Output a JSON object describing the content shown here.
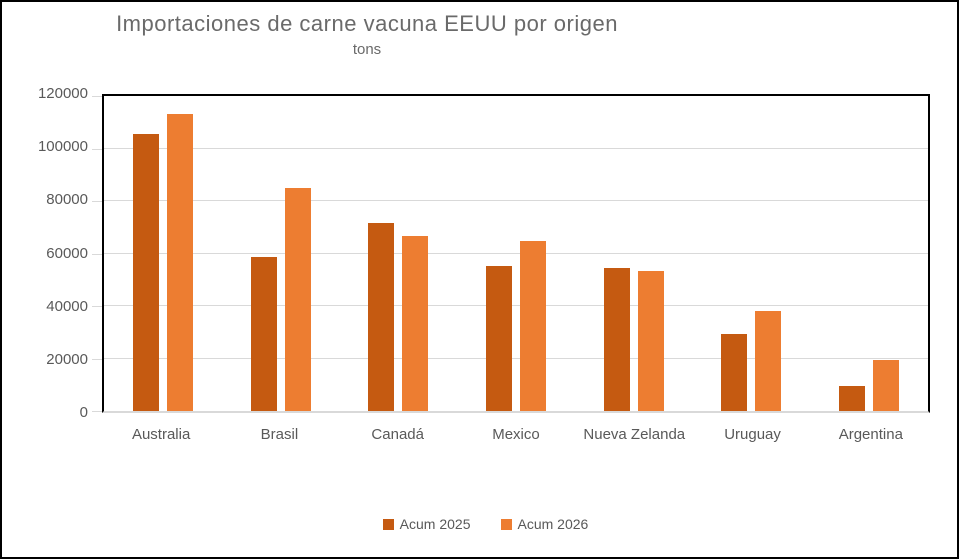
{
  "chart_data": {
    "type": "bar",
    "title": "Importaciones de carne vacuna EEUU por origen",
    "subtitle": "tons",
    "categories": [
      "Australia",
      "Brasil",
      "Canadá",
      "Mexico",
      "Nueva Zelanda",
      "Uruguay",
      "Argentina"
    ],
    "series": [
      {
        "name": "Acum 2025",
        "color": "#C55A11",
        "values": [
          105600,
          58500,
          71600,
          55100,
          54300,
          29200,
          9500
        ]
      },
      {
        "name": "Acum 2026",
        "color": "#ED7D31",
        "values": [
          113300,
          85000,
          66500,
          64900,
          53500,
          38100,
          19400
        ]
      }
    ],
    "ylim": [
      0,
      120000
    ],
    "yticks": [
      0,
      20000,
      40000,
      60000,
      80000,
      100000,
      120000
    ],
    "grid": "horizontal",
    "legend_position": "bottom",
    "colors": {
      "gridline": "#d9d9d9",
      "axis_text": "#595959",
      "title_text": "#6a6a6a",
      "plot_border": "#000000"
    }
  }
}
